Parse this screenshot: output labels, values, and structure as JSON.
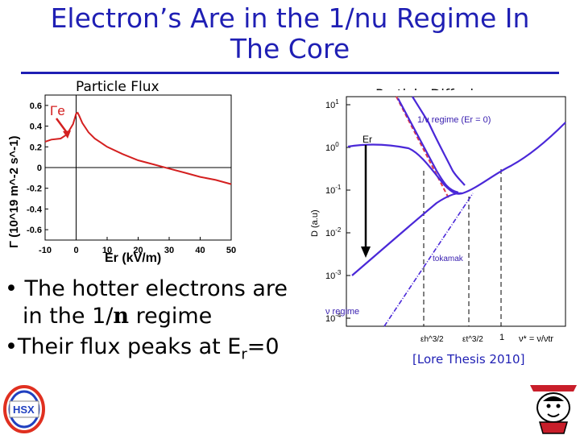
{
  "slide": {
    "title_line1": "Electron’s Are in the 1/nu Regime In",
    "title_line2": "The Core",
    "left_panel_title": "Particle Flux",
    "right_panel_title": "Particle Diffusion",
    "bullet1_line1": "• The hotter electrons are",
    "bullet1_line2_pre": "in the 1/",
    "bullet1_line2_nu": "n",
    "bullet1_line2_post": " regime",
    "bullet2_pre": "•Their flux peaks at E",
    "bullet2_sub": "r",
    "bullet2_post": "=0",
    "caption": "[Lore Thesis 2010]",
    "logo_text": "HSX"
  },
  "chart_data": [
    {
      "type": "line",
      "ylabel": "Γ (10^19 m^-2 s^-1)",
      "xlabel": "Er (kV/m)",
      "xlim": [
        -10,
        50
      ],
      "ylim": [
        -0.7,
        0.7
      ],
      "x_ticks": [
        "-10",
        "0",
        "10",
        "20",
        "30",
        "40",
        "50"
      ],
      "y_ticks": [
        "0.6",
        "0.4",
        "0.2",
        "0",
        "-0.2",
        "-0.4",
        "-0.6"
      ],
      "annotation": "Γe",
      "series": [
        {
          "color": "#d42020",
          "x": [
            -10,
            -8,
            -5,
            -3,
            -1,
            0,
            0.5,
            1,
            2,
            4,
            6,
            8,
            10,
            15,
            20,
            25,
            30,
            35,
            40,
            45,
            50
          ],
          "values": [
            0.25,
            0.27,
            0.28,
            0.32,
            0.42,
            0.52,
            0.53,
            0.5,
            0.43,
            0.34,
            0.28,
            0.24,
            0.2,
            0.13,
            0.07,
            0.03,
            -0.01,
            -0.05,
            -0.09,
            -0.12,
            -0.16
          ]
        }
      ]
    },
    {
      "type": "line",
      "ylabel": "D (a.u)",
      "xlabel": "ν* = ν/νtr",
      "y_ticks": [
        "10^1",
        "10^0",
        "10^-1",
        "10^-2",
        "10^-3",
        "10^-4"
      ],
      "x_tick_labels": [
        "εh^3/2",
        "εt^3/2",
        "1"
      ],
      "annotations": [
        "1/ν regime (Er = 0)",
        "Er",
        "tokamak",
        "ν regime"
      ]
    }
  ]
}
